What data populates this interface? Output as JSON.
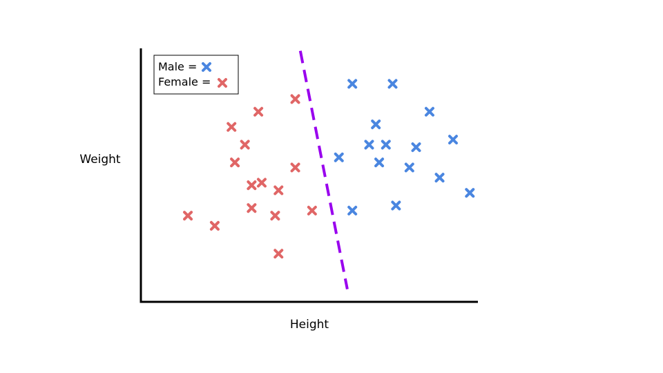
{
  "chart_data": {
    "type": "scatter",
    "title": "",
    "xlabel": "Height",
    "ylabel": "Weight",
    "xlim": [
      0,
      100
    ],
    "ylim": [
      0,
      100
    ],
    "grid": false,
    "legend_position": "top-left",
    "legend": [
      {
        "label": "Male =",
        "series": "male"
      },
      {
        "label": "Female =",
        "series": "female"
      }
    ],
    "series": [
      {
        "id": "male",
        "marker": "x",
        "color": "#4a86e0",
        "points": [
          {
            "x": 63,
            "y": 86
          },
          {
            "x": 75,
            "y": 86
          },
          {
            "x": 86,
            "y": 75
          },
          {
            "x": 70,
            "y": 70
          },
          {
            "x": 68,
            "y": 62
          },
          {
            "x": 73,
            "y": 62
          },
          {
            "x": 82,
            "y": 61
          },
          {
            "x": 93,
            "y": 64
          },
          {
            "x": 59,
            "y": 57
          },
          {
            "x": 71,
            "y": 55
          },
          {
            "x": 80,
            "y": 53
          },
          {
            "x": 89,
            "y": 49
          },
          {
            "x": 98,
            "y": 43
          },
          {
            "x": 76,
            "y": 38
          },
          {
            "x": 63,
            "y": 36
          }
        ]
      },
      {
        "id": "female",
        "marker": "x",
        "color": "#e06666",
        "points": [
          {
            "x": 46,
            "y": 80
          },
          {
            "x": 35,
            "y": 75
          },
          {
            "x": 27,
            "y": 69
          },
          {
            "x": 31,
            "y": 62
          },
          {
            "x": 28,
            "y": 55
          },
          {
            "x": 46,
            "y": 53
          },
          {
            "x": 33,
            "y": 46
          },
          {
            "x": 36,
            "y": 47
          },
          {
            "x": 41,
            "y": 44
          },
          {
            "x": 33,
            "y": 37
          },
          {
            "x": 51,
            "y": 36
          },
          {
            "x": 40,
            "y": 34
          },
          {
            "x": 14,
            "y": 34
          },
          {
            "x": 22,
            "y": 30
          },
          {
            "x": 41,
            "y": 19
          }
        ]
      }
    ],
    "decision_boundary": {
      "style": "dashed",
      "color": "#9900ee",
      "from": {
        "x": 47.5,
        "y": 99
      },
      "to": {
        "x": 61.5,
        "y": 5
      }
    }
  }
}
